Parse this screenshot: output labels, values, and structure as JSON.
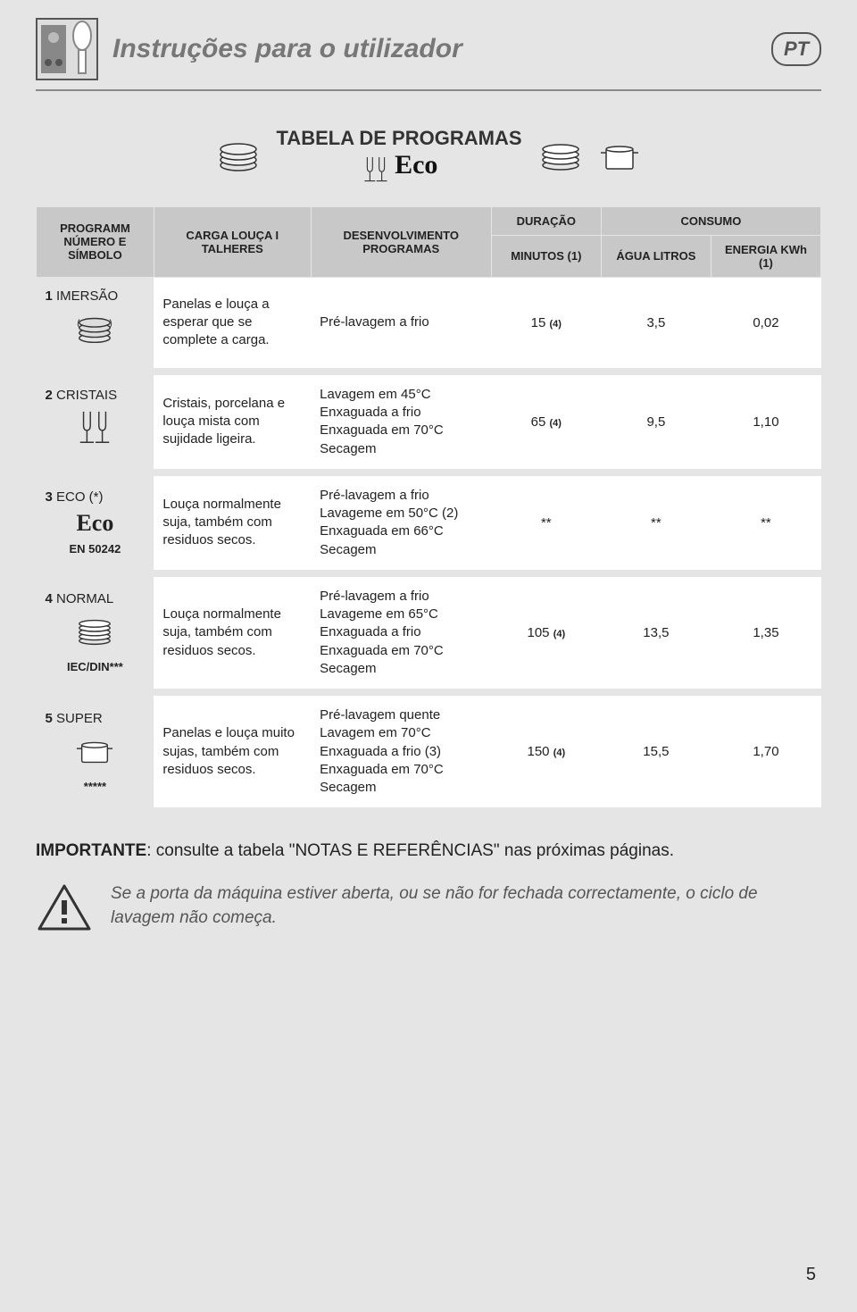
{
  "header": {
    "title": "Instruções para o utilizador",
    "lang": "PT"
  },
  "table_title": "TABELA DE PROGRAMAS",
  "eco_label": "Eco",
  "columns": {
    "c1": "PROGRAMM NÚMERO E SÍMBOLO",
    "c2": "CARGA LOUÇA I TALHERES",
    "c3": "DESENVOLVIMENTO PROGRAMAS",
    "c4_top": "DURAÇÃO",
    "c4": "MINUTOS (1)",
    "c5_top": "CONSUMO",
    "c5": "ÁGUA LITROS",
    "c6": "ENERGIA KWh (1)"
  },
  "rows": [
    {
      "num": "1",
      "name": "IMERSÃO",
      "icon": "dishes",
      "sub": "",
      "load": "Panelas e louça a esperar que se complete a carga.",
      "dev": "Pré-lavagem a frio",
      "min": "15",
      "min_note": "(4)",
      "agua": "3,5",
      "kwh": "0,02"
    },
    {
      "num": "2",
      "name": "CRISTAIS",
      "icon": "glasses",
      "sub": "",
      "load": "Cristais, porcelana e louça mista com sujidade ligeira.",
      "dev": "Lavagem em 45°C\nEnxaguada a frio\nEnxaguada em 70°C\nSecagem",
      "min": "65",
      "min_note": "(4)",
      "agua": "9,5",
      "kwh": "1,10"
    },
    {
      "num": "3",
      "name": "ECO (*)",
      "icon": "eco",
      "sub": "EN 50242",
      "load": "Louça normalmente suja, também com residuos secos.",
      "dev": "Pré-lavagem a frio\nLavageme em 50°C (2)\nEnxaguada em 66°C\nSecagem",
      "min": "**",
      "min_note": "",
      "agua": "**",
      "kwh": "**"
    },
    {
      "num": "4",
      "name": "NORMAL",
      "icon": "plates",
      "sub": "IEC/DIN***",
      "load": "Louça normalmente suja, também com residuos secos.",
      "dev": "Pré-lavagem a frio\nLavageme em 65°C\nEnxaguada a frio\nEnxaguada em 70°C\nSecagem",
      "min": "105",
      "min_note": "(4)",
      "agua": "13,5",
      "kwh": "1,35"
    },
    {
      "num": "5",
      "name": "SUPER",
      "icon": "pot",
      "sub": "*****",
      "load": "Panelas e louça muito sujas, também com residuos secos.",
      "dev": "Pré-lavagem quente\nLavagem em 70°C\nEnxaguada a frio (3)\nEnxaguada em 70°C\nSecagem",
      "min": "150",
      "min_note": "(4)",
      "agua": "15,5",
      "kwh": "1,70"
    }
  ],
  "importante": {
    "label": "IMPORTANTE",
    "text": ": consulte a tabela \"NOTAS E REFERÊNCIAS\" nas próximas páginas."
  },
  "warning": "Se a porta da máquina estiver aberta, ou se não for fechada correctamente, o ciclo de lavagem não começa.",
  "page_num": "5",
  "colors": {
    "header_bg": "#c8c8c8",
    "cell_bg": "#ffffff",
    "page_bg": "#e5e5e5",
    "title_color": "#777777",
    "text_color": "#222222"
  }
}
